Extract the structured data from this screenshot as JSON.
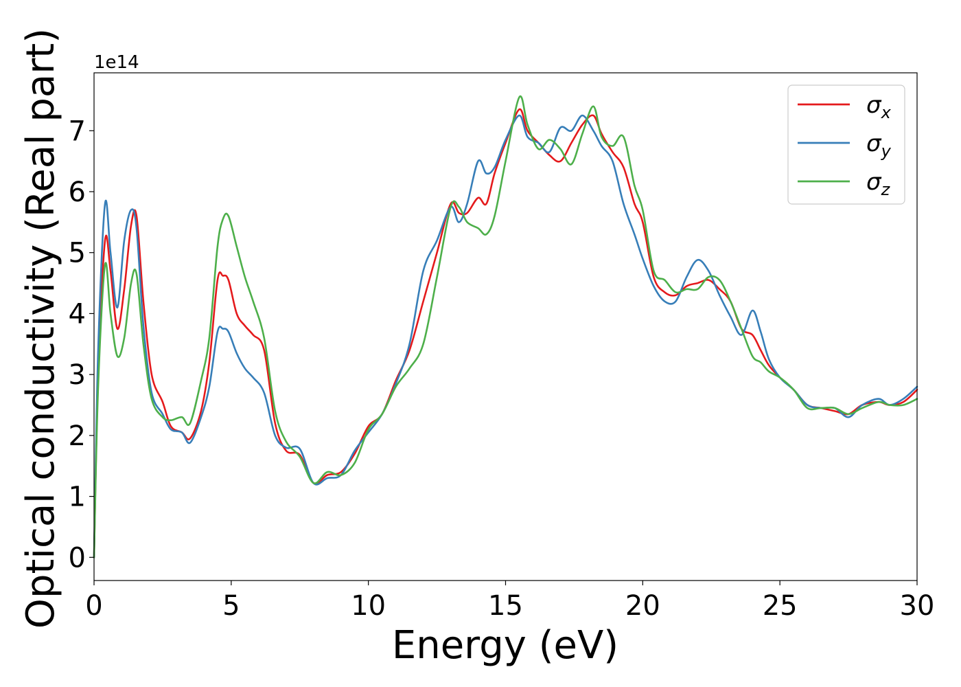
{
  "chart_data": {
    "type": "line",
    "title": "",
    "xlabel": "Energy (eV)",
    "ylabel": "Optical conductivity (Real part)",
    "y_offset_label": "1e14",
    "xlim": [
      0,
      30
    ],
    "ylim": [
      -0.38,
      7.95
    ],
    "x_ticks": [
      0,
      5,
      10,
      15,
      20,
      25,
      30
    ],
    "y_ticks": [
      0,
      1,
      2,
      3,
      4,
      5,
      6,
      7
    ],
    "grid": false,
    "legend_position": "top-right",
    "series": [
      {
        "name": "σ",
        "subscript": "x",
        "color": "#e41a1c",
        "x": [
          0,
          0.15,
          0.4,
          0.6,
          0.85,
          1.1,
          1.35,
          1.55,
          1.8,
          2.1,
          2.5,
          2.8,
          3.2,
          3.5,
          3.9,
          4.2,
          4.5,
          4.7,
          4.9,
          5.2,
          5.5,
          5.8,
          6.2,
          6.6,
          7.0,
          7.5,
          8.0,
          8.5,
          9.0,
          9.5,
          10.0,
          10.5,
          11.0,
          11.5,
          12.0,
          12.5,
          13.0,
          13.3,
          13.6,
          14.0,
          14.3,
          14.6,
          15.0,
          15.5,
          15.8,
          16.2,
          16.6,
          17.0,
          17.4,
          17.8,
          18.2,
          18.5,
          18.9,
          19.3,
          19.7,
          20.0,
          20.4,
          20.8,
          21.2,
          21.6,
          22.0,
          22.4,
          22.8,
          23.2,
          23.6,
          24.0,
          24.3,
          24.6,
          25.0,
          25.5,
          26.0,
          26.5,
          27.0,
          27.5,
          28.0,
          28.6,
          29.0,
          29.5,
          30.0
        ],
        "y": [
          0,
          3.0,
          5.2,
          4.7,
          3.75,
          4.4,
          5.45,
          5.6,
          4.2,
          3.0,
          2.55,
          2.15,
          2.05,
          1.95,
          2.4,
          3.2,
          4.55,
          4.62,
          4.55,
          4.0,
          3.8,
          3.65,
          3.4,
          2.2,
          1.75,
          1.68,
          1.22,
          1.35,
          1.4,
          1.7,
          2.15,
          2.35,
          2.9,
          3.4,
          4.2,
          5.0,
          5.8,
          5.65,
          5.65,
          5.9,
          5.8,
          6.3,
          6.8,
          7.35,
          7.0,
          6.8,
          6.6,
          6.5,
          6.8,
          7.1,
          7.25,
          6.95,
          6.65,
          6.4,
          5.8,
          5.5,
          4.6,
          4.35,
          4.3,
          4.45,
          4.5,
          4.55,
          4.4,
          4.2,
          3.75,
          3.65,
          3.4,
          3.15,
          2.95,
          2.75,
          2.5,
          2.45,
          2.4,
          2.35,
          2.5,
          2.55,
          2.5,
          2.55,
          2.75
        ]
      },
      {
        "name": "σ",
        "subscript": "y",
        "color": "#377eb8",
        "x": [
          0,
          0.15,
          0.4,
          0.6,
          0.85,
          1.1,
          1.35,
          1.55,
          1.8,
          2.1,
          2.5,
          2.8,
          3.2,
          3.5,
          3.9,
          4.2,
          4.5,
          4.7,
          4.9,
          5.2,
          5.5,
          5.8,
          6.2,
          6.6,
          7.0,
          7.5,
          8.0,
          8.5,
          9.0,
          9.5,
          10.0,
          10.5,
          11.0,
          11.5,
          12.0,
          12.5,
          13.0,
          13.3,
          13.6,
          14.0,
          14.3,
          14.6,
          15.0,
          15.5,
          15.8,
          16.2,
          16.6,
          17.0,
          17.4,
          17.8,
          18.2,
          18.5,
          18.9,
          19.3,
          19.7,
          20.0,
          20.4,
          20.8,
          21.2,
          21.6,
          22.0,
          22.4,
          22.8,
          23.2,
          23.6,
          24.0,
          24.3,
          24.6,
          25.0,
          25.5,
          26.0,
          26.5,
          27.0,
          27.5,
          28.0,
          28.6,
          29.0,
          29.5,
          30.0
        ],
        "y": [
          0,
          3.4,
          5.8,
          5.0,
          4.1,
          5.2,
          5.7,
          5.4,
          3.8,
          2.7,
          2.35,
          2.1,
          2.05,
          1.88,
          2.3,
          2.8,
          3.7,
          3.75,
          3.7,
          3.35,
          3.1,
          2.95,
          2.7,
          2.0,
          1.8,
          1.78,
          1.22,
          1.3,
          1.35,
          1.75,
          2.05,
          2.35,
          2.85,
          3.5,
          4.7,
          5.2,
          5.75,
          5.5,
          5.8,
          6.5,
          6.3,
          6.4,
          6.85,
          7.25,
          6.9,
          6.8,
          6.65,
          7.05,
          7.0,
          7.25,
          7.0,
          6.75,
          6.5,
          5.8,
          5.3,
          4.9,
          4.45,
          4.2,
          4.2,
          4.6,
          4.88,
          4.7,
          4.3,
          3.95,
          3.65,
          4.05,
          3.7,
          3.25,
          2.95,
          2.75,
          2.5,
          2.45,
          2.45,
          2.3,
          2.5,
          2.6,
          2.5,
          2.6,
          2.8
        ]
      },
      {
        "name": "σ",
        "subscript": "z",
        "color": "#4daf4a",
        "x": [
          0,
          0.15,
          0.4,
          0.6,
          0.85,
          1.1,
          1.35,
          1.55,
          1.8,
          2.1,
          2.5,
          2.8,
          3.2,
          3.5,
          3.9,
          4.2,
          4.5,
          4.7,
          4.9,
          5.2,
          5.5,
          5.8,
          6.2,
          6.6,
          7.0,
          7.5,
          8.0,
          8.5,
          9.0,
          9.5,
          10.0,
          10.5,
          11.0,
          11.5,
          12.0,
          12.5,
          13.0,
          13.3,
          13.6,
          14.0,
          14.3,
          14.6,
          15.0,
          15.5,
          15.8,
          16.2,
          16.6,
          17.0,
          17.4,
          17.8,
          18.2,
          18.5,
          18.9,
          19.3,
          19.7,
          20.0,
          20.4,
          20.8,
          21.2,
          21.6,
          22.0,
          22.4,
          22.8,
          23.2,
          23.6,
          24.0,
          24.3,
          24.6,
          25.0,
          25.5,
          26.0,
          26.5,
          27.0,
          27.5,
          28.0,
          28.6,
          29.0,
          29.5,
          30.0
        ],
        "y": [
          0,
          2.8,
          4.8,
          4.0,
          3.3,
          3.6,
          4.5,
          4.65,
          3.5,
          2.6,
          2.3,
          2.25,
          2.3,
          2.2,
          2.9,
          3.6,
          5.1,
          5.55,
          5.6,
          5.1,
          4.6,
          4.2,
          3.6,
          2.4,
          1.9,
          1.65,
          1.22,
          1.4,
          1.35,
          1.55,
          2.1,
          2.35,
          2.8,
          3.1,
          3.5,
          4.6,
          5.75,
          5.75,
          5.5,
          5.4,
          5.3,
          5.6,
          6.5,
          7.55,
          7.1,
          6.7,
          6.85,
          6.7,
          6.45,
          6.95,
          7.4,
          6.9,
          6.75,
          6.9,
          6.1,
          5.7,
          4.7,
          4.55,
          4.35,
          4.4,
          4.4,
          4.6,
          4.55,
          4.2,
          3.75,
          3.3,
          3.2,
          3.05,
          2.95,
          2.75,
          2.45,
          2.45,
          2.45,
          2.35,
          2.45,
          2.55,
          2.5,
          2.5,
          2.6
        ]
      }
    ]
  }
}
